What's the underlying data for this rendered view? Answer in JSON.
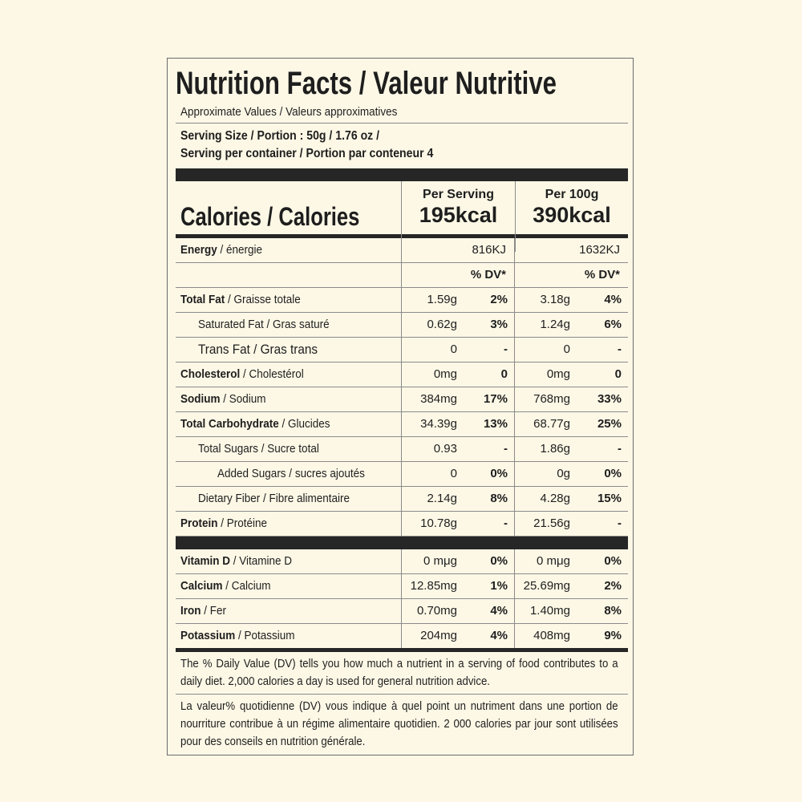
{
  "title": "Nutrition Facts / Valeur Nutritive",
  "subtitle": "Approximate Values / Valeurs approximatives",
  "serving_size": "Serving Size / Portion : 50g / 1.76 oz /",
  "servings": "Serving per container / Portion par conteneur  4",
  "calories": {
    "label": "Calories / Calories",
    "per_serving_header": "Per Serving",
    "per_serving": "195kcal",
    "per_100g_header": "Per 100g",
    "per_100g": "390kcal"
  },
  "energy": {
    "label": "Energy",
    "label_fr": "/ énergie",
    "per_serving": "816KJ",
    "per_100g": "1632KJ"
  },
  "dv_headers": [
    "% DV*",
    "% DV*"
  ],
  "nutrients": [
    {
      "label": "Total Fat",
      "label_fr": "/ Graisse totale",
      "values": [
        "1.59g",
        "2%",
        "3.18g",
        "4%"
      ]
    },
    {
      "label": "Saturated Fat / Gras saturé",
      "values": [
        "0.62g",
        "3%",
        "1.24g",
        "6%"
      ]
    },
    {
      "label": "Trans Fat / Gras trans",
      "values": [
        "0",
        "-",
        "0",
        "-"
      ]
    },
    {
      "label": "Cholesterol",
      "label_fr": "/ Cholestérol",
      "values": [
        "0mg",
        "0",
        "0mg",
        "0"
      ]
    },
    {
      "label": "Sodium",
      "label_fr": "/ Sodium",
      "values": [
        "384mg",
        "17%",
        "768mg",
        "33%"
      ]
    },
    {
      "label": "Total Carbohydrate",
      "label_fr": "/ Glucides",
      "values": [
        "34.39g",
        "13%",
        "68.77g",
        "25%"
      ]
    },
    {
      "label": "Total Sugars / Sucre total",
      "values": [
        "0.93",
        "-",
        "1.86g",
        "-"
      ]
    },
    {
      "label": "Added Sugars / sucres ajoutés",
      "values": [
        "0",
        "0%",
        "0g",
        "0%"
      ]
    },
    {
      "label": "Dietary Fiber / Fibre alimentaire",
      "values": [
        "2.14g",
        "8%",
        "4.28g",
        "15%"
      ]
    },
    {
      "label": "Protein",
      "label_fr": "/ Protéine",
      "values": [
        "10.78g",
        "-",
        "21.56g",
        "-"
      ]
    }
  ],
  "vitamins": [
    {
      "label": "Vitamin D",
      "label_fr": "/ Vitamine D",
      "values": [
        "0 mμg",
        "0%",
        "0 mμg",
        "0%"
      ]
    },
    {
      "label": "Calcium",
      "label_fr": "/ Calcium",
      "values": [
        "12.85mg",
        "1%",
        "25.69mg",
        "2%"
      ]
    },
    {
      "label": "Iron",
      "label_fr": "/ Fer",
      "values": [
        "0.70mg",
        "4%",
        "1.40mg",
        "8%"
      ]
    },
    {
      "label": "Potassium",
      "label_fr": "/ Potassium",
      "values": [
        "204mg",
        "4%",
        "408mg",
        "9%"
      ]
    }
  ],
  "footnote_en": "The % Daily Value (DV) tells you how much a nutrient in a serving of food contributes to a daily diet. 2,000 calories a day is used for general nutrition advice.",
  "footnote_fr": "La valeur% quotidienne (DV) vous indique à quel point un nutriment dans une portion de nourriture contribue à un régime alimentaire quotidien. 2 000 calories par jour sont utilisées pour des conseils en nutrition générale."
}
